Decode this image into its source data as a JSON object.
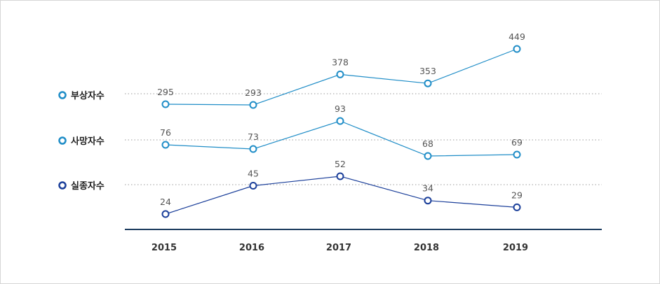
{
  "chart_data": {
    "type": "line",
    "categories": [
      "2015",
      "2016",
      "2017",
      "2018",
      "2019"
    ],
    "series": [
      {
        "name": "부상자수",
        "values": [
          295,
          293,
          378,
          353,
          449
        ],
        "color": "#1f8dc7"
      },
      {
        "name": "사망자수",
        "values": [
          76,
          73,
          93,
          68,
          69
        ],
        "color": "#1f8dc7"
      },
      {
        "name": "실종자수",
        "values": [
          24,
          45,
          52,
          34,
          29
        ],
        "color": "#1b3f9a"
      }
    ],
    "grid": "dotted reference line per series",
    "legend": "left",
    "axis_color": "#1c3b5e"
  }
}
